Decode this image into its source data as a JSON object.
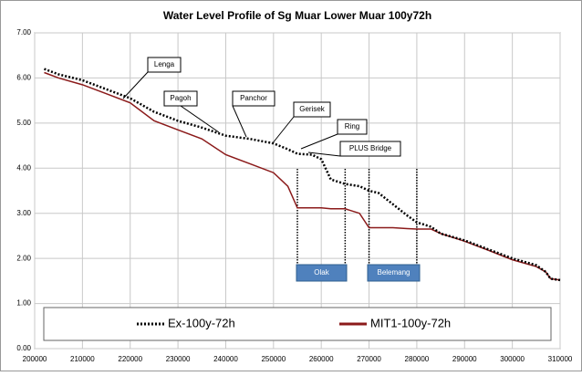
{
  "chart_data": {
    "type": "line",
    "title": "Water Level Profile of Sg Muar Lower Muar 100y72h",
    "x": [
      202000,
      205000,
      210000,
      215000,
      220000,
      225000,
      230000,
      235000,
      240000,
      245000,
      250000,
      253000,
      255000,
      258000,
      260000,
      262000,
      265000,
      268000,
      270000,
      272000,
      275000,
      278000,
      280000,
      283000,
      285000,
      290000,
      295000,
      300000,
      305000,
      307000,
      308000,
      310000
    ],
    "series": [
      {
        "name": "Ex-100y-72h",
        "color": "#000000",
        "line_style": "dotted",
        "values": [
          6.2,
          6.08,
          5.95,
          5.75,
          5.55,
          5.25,
          5.05,
          4.9,
          4.72,
          4.65,
          4.55,
          4.42,
          4.32,
          4.3,
          4.2,
          3.75,
          3.65,
          3.6,
          3.5,
          3.45,
          3.2,
          2.95,
          2.8,
          2.7,
          2.55,
          2.4,
          2.2,
          2.0,
          1.85,
          1.7,
          1.55,
          1.52
        ]
      },
      {
        "name": "MIT1-100y-72h",
        "color": "#8b1a1a",
        "line_style": "solid",
        "values": [
          6.12,
          6.0,
          5.85,
          5.65,
          5.45,
          5.05,
          4.85,
          4.65,
          4.3,
          4.1,
          3.9,
          3.6,
          3.12,
          3.12,
          3.12,
          3.1,
          3.1,
          3.0,
          2.68,
          2.68,
          2.68,
          2.66,
          2.65,
          2.65,
          2.55,
          2.38,
          2.18,
          1.97,
          1.82,
          1.7,
          1.55,
          1.52
        ]
      }
    ],
    "xlim": [
      200000,
      310000
    ],
    "xticks": [
      200000,
      210000,
      220000,
      230000,
      240000,
      250000,
      260000,
      270000,
      280000,
      290000,
      300000,
      310000
    ],
    "ylim": [
      0,
      7
    ],
    "yticks": [
      {
        "value": 0,
        "label": "0.00"
      },
      {
        "value": 1,
        "label": "1.00"
      },
      {
        "value": 2,
        "label": "2.00"
      },
      {
        "value": 3,
        "label": "3.00"
      },
      {
        "value": 4,
        "label": "4.00"
      },
      {
        "value": 5,
        "label": "5.00"
      },
      {
        "value": 6,
        "label": "6.00"
      },
      {
        "value": 7,
        "label": "7.00"
      }
    ],
    "grid": true,
    "reference_lines": [
      255000,
      265000,
      270000,
      280000
    ],
    "annotations": [
      "Lenga",
      "Pagoh",
      "Panchor",
      "Gerisek",
      "Ring",
      "PLUS Bridge"
    ],
    "zones": [
      "Olak",
      "Belemang"
    ],
    "legend": "bottom"
  }
}
